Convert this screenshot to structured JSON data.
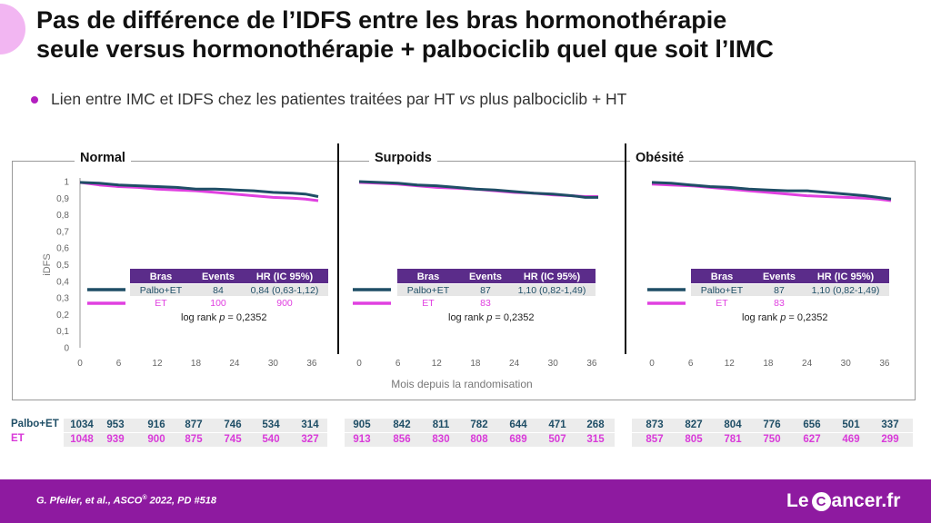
{
  "title_lines": [
    "Pas de différence de l’IDFS entre les bras hormonothérapie",
    "seule versus hormonothérapie + palbociclib quel que soit l’IMC"
  ],
  "bullet": {
    "pre": "Lien entre IMC et IDFS chez les patientes traitées par HT ",
    "italic": "vs",
    "post": " plus palbociclib + HT"
  },
  "colors": {
    "palbo": "#1f4e66",
    "et": "#e040e0",
    "header_bg": "#5b2c8a",
    "accent": "#8e1aa0"
  },
  "y_axis_label": "iDFS",
  "x_axis_label": "Mois depuis la randomisation",
  "y_ticks": [
    "0",
    "0,1",
    "0,2",
    "0,3",
    "0,4",
    "0,5",
    "0,6",
    "0,7",
    "0,8",
    "0,9",
    "1"
  ],
  "x_ticks": [
    "0",
    "6",
    "12",
    "18",
    "24",
    "30",
    "36"
  ],
  "legend_headers": [
    "Bras",
    "Events",
    "HR (IC 95%)"
  ],
  "chart_data": [
    {
      "type": "line",
      "title": "Normal",
      "xlim": [
        0,
        37
      ],
      "ylim": [
        0,
        1
      ],
      "x": [
        0,
        3,
        6,
        9,
        12,
        15,
        18,
        21,
        24,
        27,
        30,
        33,
        35,
        37
      ],
      "series": [
        {
          "name": "Palbo+ET",
          "events": "84",
          "hr": "0,84 (0,63-1,12)",
          "values": [
            0.995,
            0.99,
            0.98,
            0.975,
            0.97,
            0.965,
            0.955,
            0.955,
            0.95,
            0.945,
            0.935,
            0.93,
            0.925,
            0.91
          ]
        },
        {
          "name": "ET",
          "events": "100",
          "hr": "900",
          "values": [
            0.995,
            0.98,
            0.97,
            0.965,
            0.955,
            0.95,
            0.945,
            0.935,
            0.925,
            0.915,
            0.905,
            0.9,
            0.895,
            0.885
          ]
        }
      ],
      "log_rank": "0,2352"
    },
    {
      "type": "line",
      "title": "Surpoids",
      "xlim": [
        0,
        37
      ],
      "ylim": [
        0,
        1
      ],
      "x": [
        0,
        3,
        6,
        9,
        12,
        15,
        18,
        21,
        24,
        27,
        30,
        33,
        35,
        37
      ],
      "series": [
        {
          "name": "Palbo+ET",
          "events": "87",
          "hr": "1,10 (0,82-1,49)",
          "values": [
            1.0,
            0.995,
            0.99,
            0.98,
            0.975,
            0.965,
            0.955,
            0.95,
            0.94,
            0.93,
            0.925,
            0.915,
            0.905,
            0.905
          ]
        },
        {
          "name": "ET",
          "events": "83",
          "hr": "",
          "values": [
            0.995,
            0.99,
            0.985,
            0.975,
            0.965,
            0.96,
            0.955,
            0.945,
            0.935,
            0.93,
            0.92,
            0.915,
            0.91,
            0.91
          ]
        }
      ],
      "log_rank": "0,2352"
    },
    {
      "type": "line",
      "title": "Obésité",
      "xlim": [
        0,
        37
      ],
      "ylim": [
        0,
        1
      ],
      "x": [
        0,
        3,
        6,
        9,
        12,
        15,
        18,
        21,
        24,
        27,
        30,
        33,
        35,
        37
      ],
      "series": [
        {
          "name": "Palbo+ET",
          "events": "87",
          "hr": "1,10 (0,82-1,49)",
          "values": [
            0.995,
            0.99,
            0.98,
            0.97,
            0.965,
            0.955,
            0.95,
            0.945,
            0.945,
            0.935,
            0.925,
            0.915,
            0.905,
            0.895
          ]
        },
        {
          "name": "ET",
          "events": "83",
          "hr": "",
          "values": [
            0.985,
            0.98,
            0.975,
            0.965,
            0.955,
            0.945,
            0.935,
            0.925,
            0.915,
            0.91,
            0.905,
            0.9,
            0.895,
            0.885
          ]
        }
      ],
      "log_rank": "0,2352"
    }
  ],
  "log_rank_prefix": "log rank ",
  "log_rank_p": "p",
  "log_rank_eq": " = ",
  "risk_table": {
    "palbo_label": "Palbo+ET",
    "et_label": "ET",
    "palbo": [
      [
        "1034",
        "953",
        "916",
        "877",
        "746",
        "534",
        "314"
      ],
      [
        "905",
        "842",
        "811",
        "782",
        "644",
        "471",
        "268"
      ],
      [
        "873",
        "827",
        "804",
        "776",
        "656",
        "501",
        "337"
      ]
    ],
    "et": [
      [
        "1048",
        "939",
        "900",
        "875",
        "745",
        "540",
        "327"
      ],
      [
        "913",
        "856",
        "830",
        "808",
        "689",
        "507",
        "315"
      ],
      [
        "857",
        "805",
        "781",
        "750",
        "627",
        "469",
        "299"
      ]
    ]
  },
  "footer": {
    "citation_pre": "G. Pfeiler, et al., ASCO",
    "citation_sup": "®",
    "citation_post": " 2022, PD #518",
    "logo_pre": "Le ",
    "logo_mid": "C",
    "logo_post": "ancer.fr"
  }
}
